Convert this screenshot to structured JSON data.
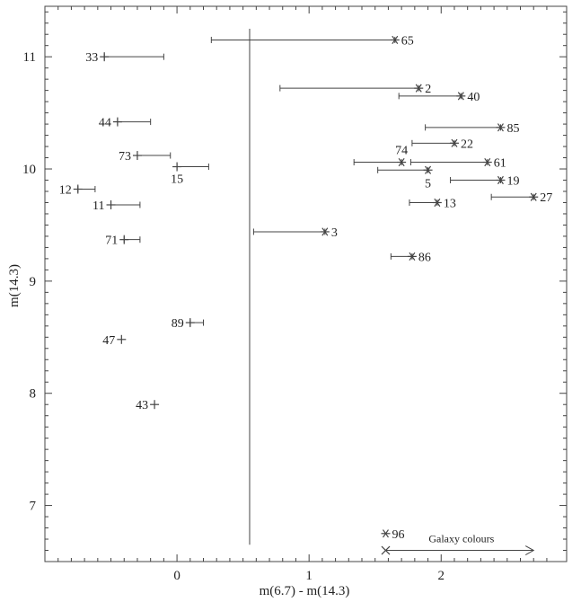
{
  "chart_data": {
    "type": "scatter",
    "xlabel": "m(6.7) - m(14.3)",
    "ylabel": "m(14.3)",
    "xlim": [
      -1.0,
      2.95
    ],
    "ylim": [
      6.5,
      11.45
    ],
    "xticks": [
      "0",
      "1",
      "2"
    ],
    "yticks": [
      "7",
      "8",
      "9",
      "10",
      "11"
    ],
    "xtick_values": [
      0,
      1,
      2
    ],
    "ytick_values": [
      7,
      8,
      9,
      10,
      11
    ],
    "grid": false,
    "vertical_line": {
      "x": 0.55,
      "y_from": 6.65,
      "y_to": 11.25
    },
    "plus_points": [
      {
        "label": "33",
        "x": -0.55,
        "y": 11.0,
        "err_to": -0.1
      },
      {
        "label": "44",
        "x": -0.45,
        "y": 10.42,
        "err_to": -0.2
      },
      {
        "label": "73",
        "x": -0.3,
        "y": 10.12,
        "err_to": -0.05
      },
      {
        "label": "15",
        "x": 0.0,
        "y": 10.02,
        "err_to": 0.24
      },
      {
        "label": "12",
        "x": -0.75,
        "y": 9.82,
        "err_to": -0.62
      },
      {
        "label": "11",
        "x": -0.5,
        "y": 9.68,
        "err_to": -0.28
      },
      {
        "label": "71",
        "x": -0.4,
        "y": 9.37,
        "err_to": -0.28
      },
      {
        "label": "89",
        "x": 0.1,
        "y": 8.63,
        "err_to": 0.2
      },
      {
        "label": "47",
        "x": -0.42,
        "y": 8.48,
        "err_to": null
      },
      {
        "label": "43",
        "x": -0.17,
        "y": 7.9,
        "err_to": null
      }
    ],
    "star_points": [
      {
        "label": "65",
        "x": 1.65,
        "y": 11.15,
        "err_from": 0.26
      },
      {
        "label": "2",
        "x": 1.83,
        "y": 10.72,
        "err_from": 0.78
      },
      {
        "label": "40",
        "x": 2.15,
        "y": 10.65,
        "err_from": 1.68
      },
      {
        "label": "85",
        "x": 2.45,
        "y": 10.37,
        "err_from": 1.88
      },
      {
        "label": "22",
        "x": 2.1,
        "y": 10.23,
        "err_from": 1.78
      },
      {
        "label": "74",
        "x": 1.7,
        "y": 10.06,
        "err_from": 1.34
      },
      {
        "label": "61",
        "x": 2.35,
        "y": 10.06,
        "err_from": 1.77
      },
      {
        "label": "5",
        "x": 1.9,
        "y": 9.99,
        "err_from": 1.52
      },
      {
        "label": "19",
        "x": 2.45,
        "y": 9.9,
        "err_from": 2.07
      },
      {
        "label": "27",
        "x": 2.7,
        "y": 9.75,
        "err_from": 2.38
      },
      {
        "label": "13",
        "x": 1.97,
        "y": 9.7,
        "err_from": 1.76
      },
      {
        "label": "3",
        "x": 1.12,
        "y": 9.44,
        "err_from": 0.58
      },
      {
        "label": "86",
        "x": 1.78,
        "y": 9.22,
        "err_from": 1.62
      },
      {
        "label": "96",
        "x": 1.58,
        "y": 6.75,
        "err_from": null
      }
    ],
    "galaxy_colours": {
      "label": "Galaxy colours",
      "marker_x": 1.58,
      "y": 6.6,
      "x_from": 1.58,
      "x_to": 2.7
    }
  }
}
